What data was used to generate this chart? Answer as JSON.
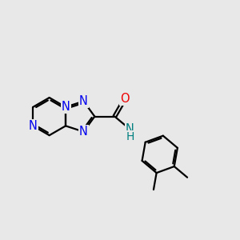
{
  "bg_color": "#e8e8e8",
  "bond_color": "#000000",
  "N_color": "#0000ee",
  "O_color": "#ee0000",
  "NH_color": "#008080",
  "line_width": 1.6,
  "font_size": 10.5,
  "xlim": [
    -4.2,
    5.8
  ],
  "ylim": [
    -3.2,
    3.2
  ],
  "scale": 1.0
}
